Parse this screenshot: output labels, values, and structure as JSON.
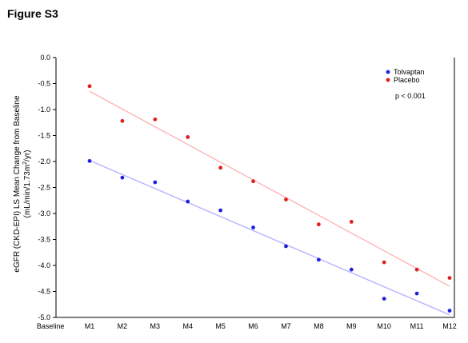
{
  "figure_label": "Figure S3",
  "chart_data": {
    "type": "scatter",
    "categories": [
      "Baseline",
      "M1",
      "M2",
      "M3",
      "M4",
      "M5",
      "M6",
      "M7",
      "M8",
      "M9",
      "M10",
      "M11",
      "M12"
    ],
    "ylim": [
      -5.0,
      0.0
    ],
    "yticks": [
      "0.0",
      "-0.5",
      "-1.0",
      "-1.5",
      "-2.0",
      "-2.5",
      "-3.0",
      "-3.5",
      "-4.0",
      "-4.5",
      "-5.0"
    ],
    "ylabel_line1": "eGFR (CKD-EPI) LS Mean Change from Baseline",
    "ylabel_line2_pre": "(mL/min/1.73m",
    "ylabel_line2_sup": "2",
    "ylabel_line2_post": "/yr)",
    "grid": false,
    "legend_position": "top-right",
    "annotation": "p < 0.001",
    "series": [
      {
        "name": "Tolvaptan",
        "color": "#1f1fe0",
        "trend_color": "#b8b8ff",
        "x": [
          "M1",
          "M2",
          "M3",
          "M4",
          "M5",
          "M6",
          "M7",
          "M8",
          "M9",
          "M10",
          "M11",
          "M12"
        ],
        "values": [
          -1.99,
          -2.31,
          -2.4,
          -2.77,
          -2.94,
          -3.27,
          -3.63,
          -3.89,
          -4.08,
          -4.64,
          -4.54,
          -4.87
        ],
        "trend": [
          -1.98,
          -4.95
        ]
      },
      {
        "name": "Placebo",
        "color": "#e01f1f",
        "trend_color": "#ffb8b8",
        "x": [
          "M1",
          "M2",
          "M3",
          "M4",
          "M5",
          "M6",
          "M7",
          "M8",
          "M9",
          "M10",
          "M11",
          "M12"
        ],
        "values": [
          -0.55,
          -1.22,
          -1.19,
          -1.53,
          -2.12,
          -2.38,
          -2.73,
          -3.21,
          -3.16,
          -3.94,
          -4.08,
          -4.24
        ],
        "trend": [
          -0.65,
          -4.4
        ]
      }
    ]
  }
}
